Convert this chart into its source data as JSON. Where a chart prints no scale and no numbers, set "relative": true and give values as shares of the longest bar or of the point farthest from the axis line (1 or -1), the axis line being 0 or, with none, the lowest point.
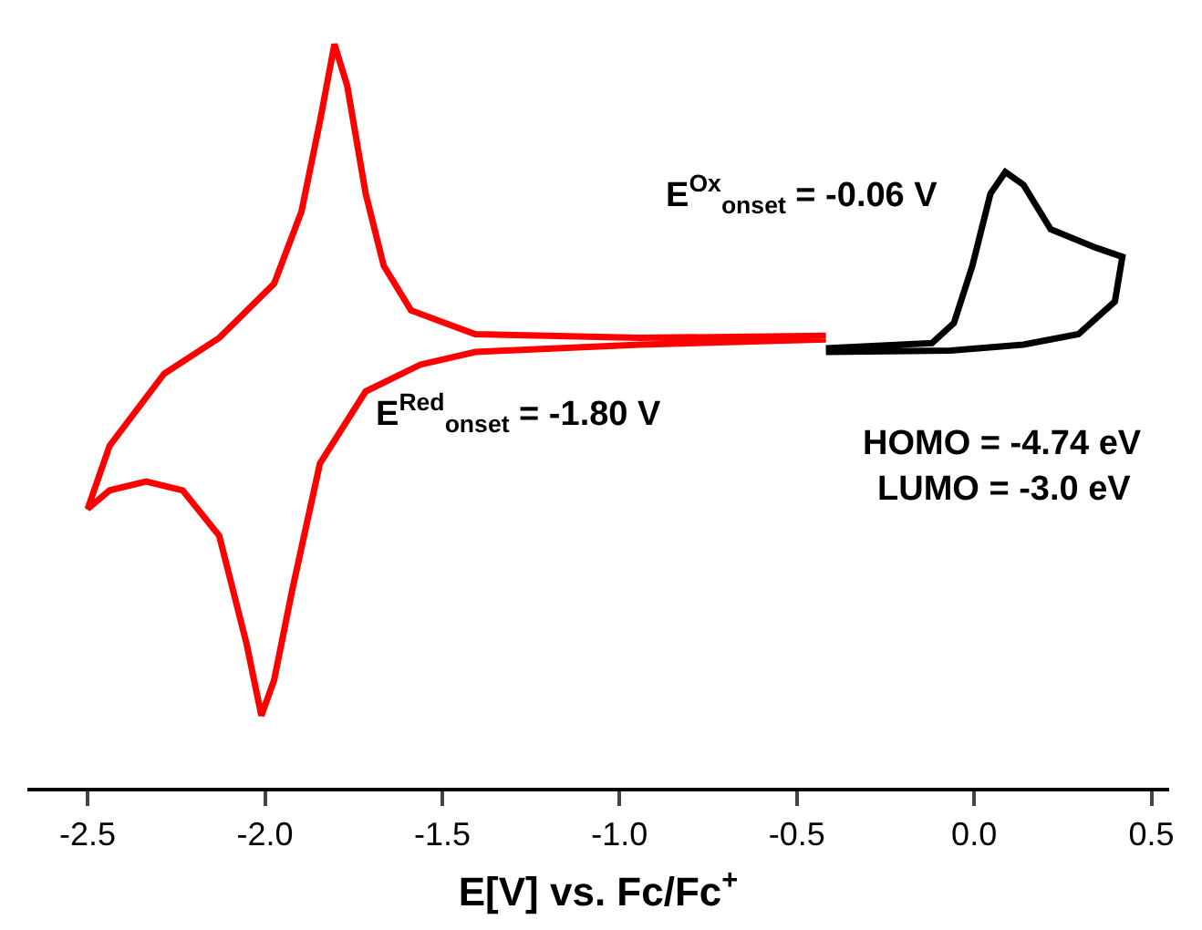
{
  "chart_data": {
    "type": "line",
    "relative": true,
    "xlabel": "E[V] vs. Fc/Fc$^{+}$",
    "xlim": [
      -2.67,
      0.55
    ],
    "xticks": [
      -2.5,
      {
        "value": -2,
        "label": "-2.0"
      },
      -1.5,
      {
        "value": -1,
        "label": "-1.0"
      },
      -0.5,
      {
        "value": 0,
        "label": "0.0"
      },
      0.5
    ],
    "annotations": [
      "E$^{Ox}$$_{onset}$ = -0.06 V",
      "E$^{Red}$$_{onset}$ = -1.80 V",
      "HOMO = -4.74 eV",
      "LUMO = -3.0 eV"
    ],
    "marker": "none",
    "line_style": "solid",
    "series": [
      {
        "color": "#ff0000",
        "x": [
          -0.418,
          -0.943,
          -1.407,
          -1.588,
          -1.665,
          -1.716,
          -1.768,
          -1.804,
          -1.845,
          -1.897,
          -1.974,
          -2.129,
          -2.284,
          -2.438,
          -2.5,
          -2.438,
          -2.335,
          -2.232,
          -2.129,
          -2.052,
          -2.01,
          -1.974,
          -1.923,
          -1.845,
          -1.716,
          -1.562,
          -1.407,
          -0.943,
          -0.418
        ],
        "values": [
          0.608,
          0.605,
          0.61,
          0.642,
          0.702,
          0.799,
          0.944,
          1.0,
          0.896,
          0.775,
          0.678,
          0.605,
          0.557,
          0.46,
          0.375,
          0.4,
          0.412,
          0.4,
          0.339,
          0.194,
          0.097,
          0.145,
          0.266,
          0.436,
          0.533,
          0.569,
          0.586,
          0.596,
          0.603
        ]
      },
      {
        "color": "#000000",
        "x": [
          -0.418,
          -0.119,
          -0.057,
          -0.005,
          0.046,
          0.088,
          0.139,
          0.216,
          0.345,
          0.418,
          0.397,
          0.294,
          0.139,
          -0.067,
          -0.418
        ],
        "values": [
          0.591,
          0.598,
          0.625,
          0.702,
          0.799,
          0.828,
          0.811,
          0.751,
          0.726,
          0.714,
          0.654,
          0.61,
          0.596,
          0.588,
          0.586
        ]
      }
    ]
  }
}
